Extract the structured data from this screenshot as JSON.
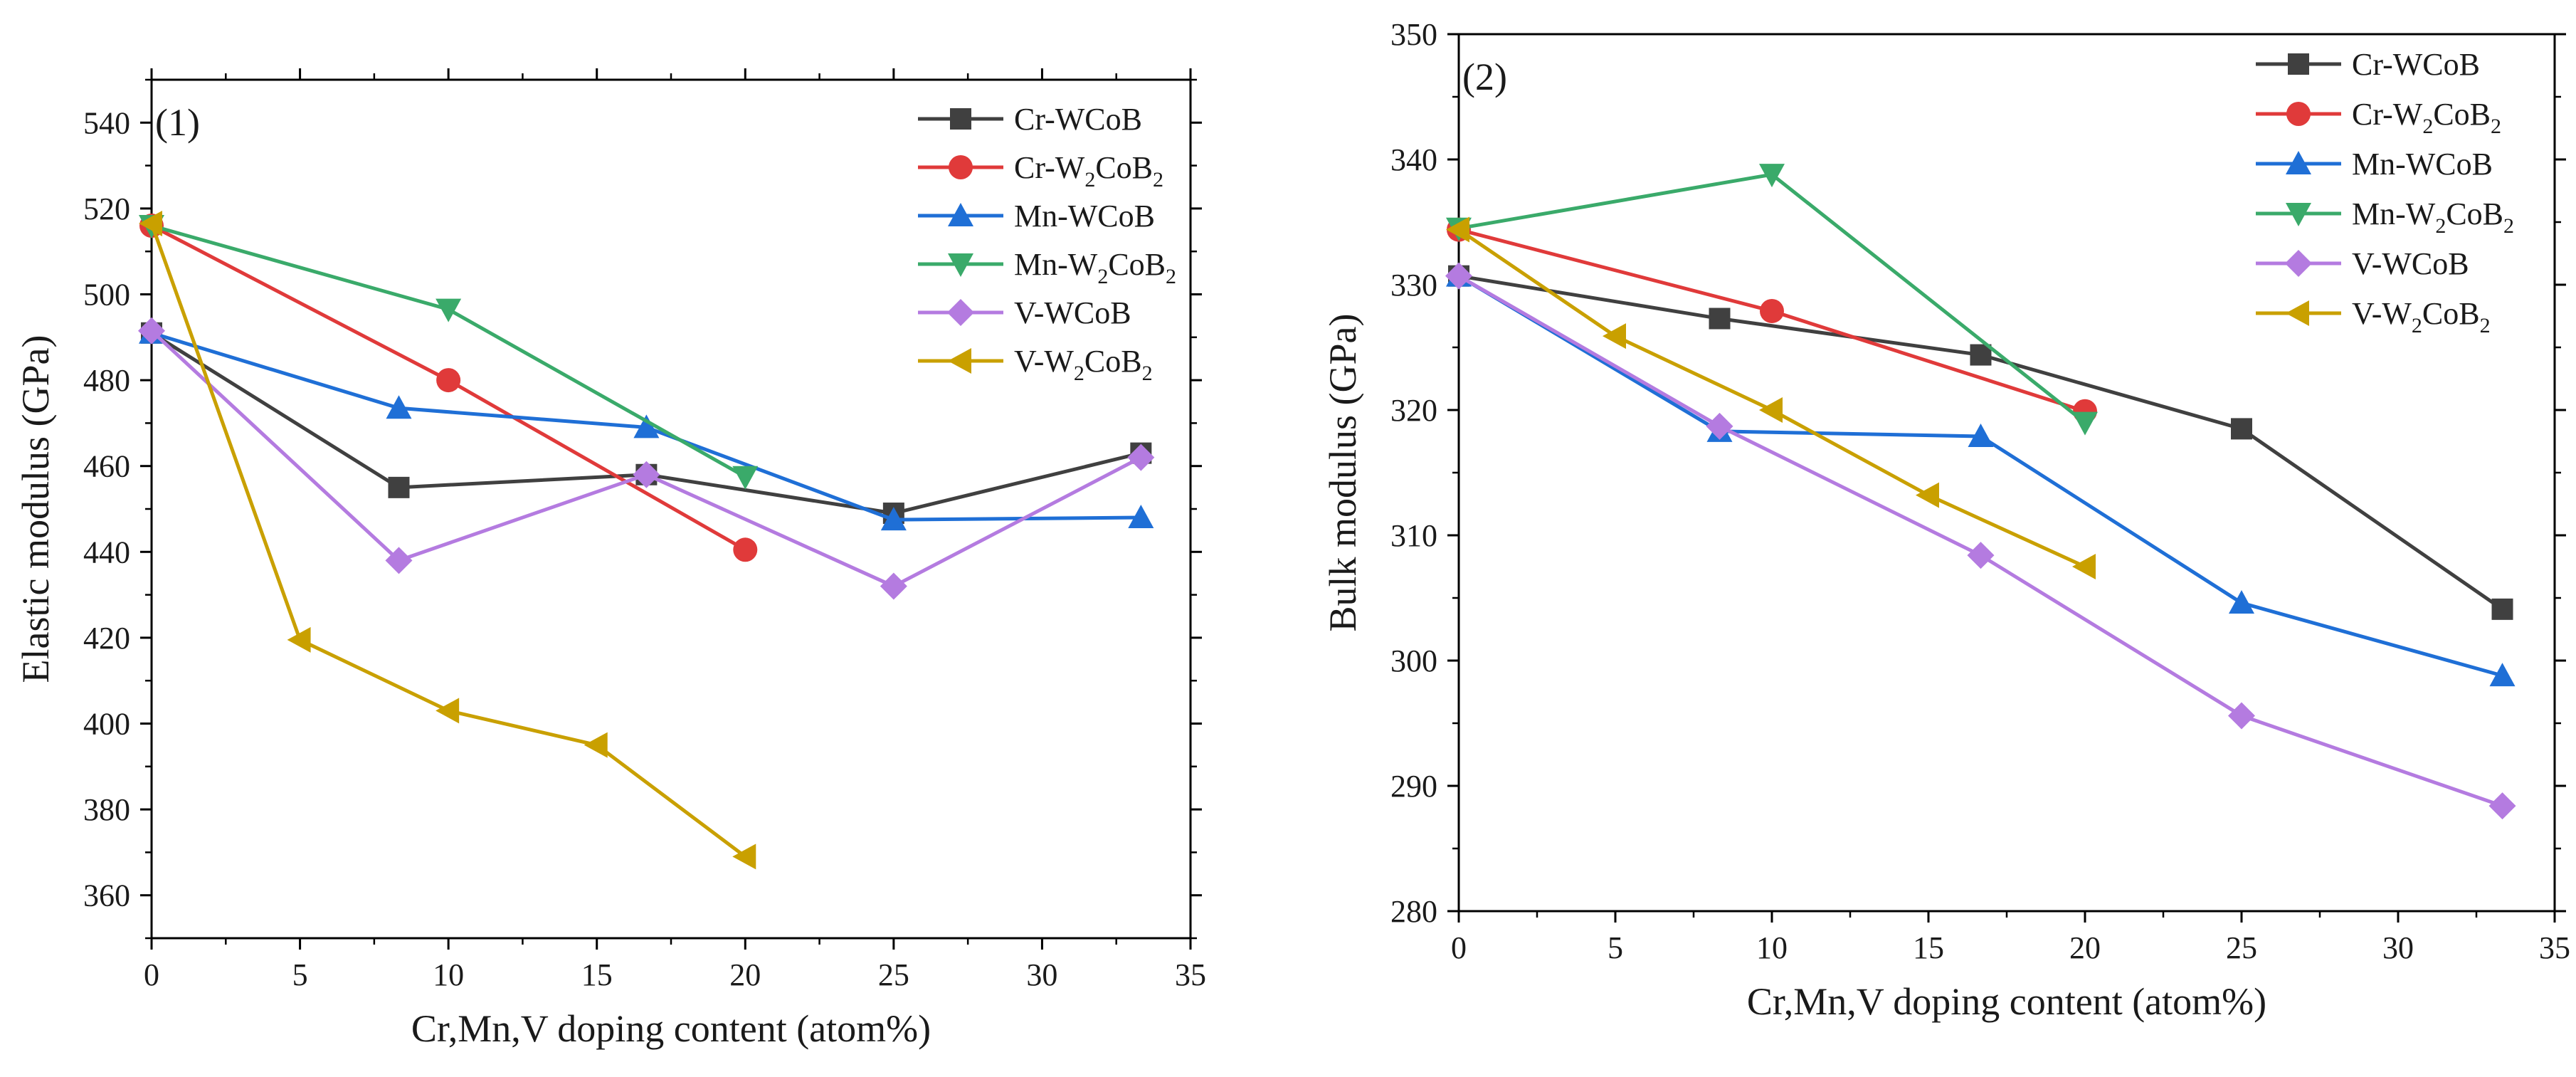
{
  "chart_data": [
    {
      "type": "line",
      "panel_label": "(1)",
      "xlabel": "Cr,Mn,V doping content (atom%)",
      "ylabel": "Elastic modulus (GPa)",
      "xlim": [
        0,
        35
      ],
      "ylim": [
        350,
        550
      ],
      "x_ticks": [
        0,
        5,
        10,
        15,
        20,
        25,
        30,
        35
      ],
      "y_ticks": [
        360,
        380,
        400,
        420,
        440,
        460,
        480,
        500,
        520,
        540
      ],
      "legend_position": "top-right",
      "series": [
        {
          "name": "Cr-WCoB",
          "base": "Cr-WCoB",
          "sub": "",
          "tail": "",
          "color": "#404040",
          "marker": "square",
          "x": [
            0,
            8.33,
            16.67,
            25,
            33.33
          ],
          "values": [
            491,
            455,
            458,
            449,
            463
          ]
        },
        {
          "name": "Cr-W2CoB2",
          "base": "Cr-W",
          "sub": "2",
          "tail": "CoB",
          "color": "#e03a3a",
          "marker": "circle",
          "x": [
            0,
            10,
            20
          ],
          "values": [
            516,
            480,
            440.5
          ]
        },
        {
          "name": "Mn-WCoB",
          "base": "Mn-WCoB",
          "sub": "",
          "tail": "",
          "color": "#1f6fd6",
          "marker": "triangle-up",
          "x": [
            0,
            8.33,
            16.67,
            25,
            33.33
          ],
          "values": [
            491,
            473.5,
            469,
            447.5,
            448
          ]
        },
        {
          "name": "Mn-W2CoB2",
          "base": "Mn-W",
          "sub": "2",
          "tail": "CoB",
          "color": "#3aaa6a",
          "marker": "triangle-down",
          "x": [
            0,
            10,
            20
          ],
          "values": [
            516,
            496.5,
            457.5
          ]
        },
        {
          "name": "V-WCoB",
          "base": "V-WCoB",
          "sub": "",
          "tail": "",
          "color": "#b47be0",
          "marker": "diamond",
          "x": [
            0,
            8.33,
            16.67,
            25,
            33.33
          ],
          "values": [
            491.5,
            438,
            458,
            432,
            462
          ]
        },
        {
          "name": "V-W2CoB2",
          "base": "V-W",
          "sub": "2",
          "tail": "CoB",
          "color": "#c9a000",
          "marker": "triangle-left",
          "x": [
            0,
            5,
            10,
            15,
            20
          ],
          "values": [
            516.5,
            419.5,
            403,
            395,
            369
          ]
        }
      ]
    },
    {
      "type": "line",
      "panel_label": "(2)",
      "xlabel": "Cr,Mn,V doping content (atom%)",
      "ylabel": "Bulk modulus (GPa)",
      "xlim": [
        0,
        35
      ],
      "ylim": [
        280,
        350
      ],
      "x_ticks": [
        0,
        5,
        10,
        15,
        20,
        25,
        30,
        35
      ],
      "y_ticks": [
        280,
        290,
        300,
        310,
        320,
        330,
        340,
        350
      ],
      "legend_position": "top-right",
      "series": [
        {
          "name": "Cr-WCoB",
          "base": "Cr-WCoB",
          "sub": "",
          "tail": "",
          "color": "#404040",
          "marker": "square",
          "x": [
            0,
            8.33,
            16.67,
            25,
            33.33
          ],
          "values": [
            330.7,
            327.3,
            324.4,
            318.5,
            304.1
          ]
        },
        {
          "name": "Cr-W2CoB2",
          "base": "Cr-W",
          "sub": "2",
          "tail": "CoB",
          "color": "#e03a3a",
          "marker": "circle",
          "x": [
            0,
            10,
            20
          ],
          "values": [
            334.4,
            327.9,
            319.9
          ]
        },
        {
          "name": "Mn-WCoB",
          "base": "Mn-WCoB",
          "sub": "",
          "tail": "",
          "color": "#1f6fd6",
          "marker": "triangle-up",
          "x": [
            0,
            8.33,
            16.67,
            25,
            33.33
          ],
          "values": [
            330.7,
            318.3,
            317.9,
            304.6,
            298.8
          ]
        },
        {
          "name": "Mn-W2CoB2",
          "base": "Mn-W",
          "sub": "2",
          "tail": "CoB",
          "color": "#3aaa6a",
          "marker": "triangle-down",
          "x": [
            0,
            10,
            20
          ],
          "values": [
            334.5,
            338.8,
            319
          ]
        },
        {
          "name": "V-WCoB",
          "base": "V-WCoB",
          "sub": "",
          "tail": "",
          "color": "#b47be0",
          "marker": "diamond",
          "x": [
            0,
            8.33,
            16.67,
            25,
            33.33
          ],
          "values": [
            330.7,
            318.7,
            308.4,
            295.6,
            288.4
          ]
        },
        {
          "name": "V-W2CoB2",
          "base": "V-W",
          "sub": "2",
          "tail": "CoB",
          "color": "#c9a000",
          "marker": "triangle-left",
          "x": [
            0,
            5,
            10,
            15,
            20
          ],
          "values": [
            334.4,
            325.9,
            320,
            313.2,
            307.5
          ]
        }
      ]
    }
  ]
}
